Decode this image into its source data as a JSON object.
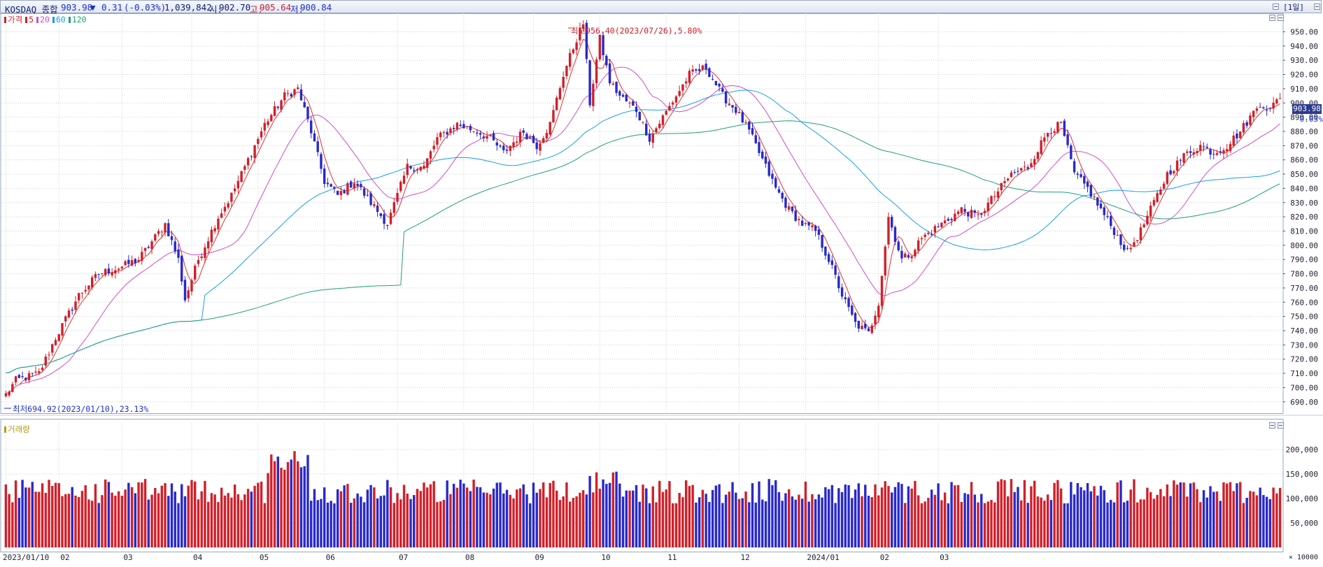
{
  "header": {
    "index_name": "KOSDAQ 종합",
    "last": "903.98",
    "change_arrow": "▼",
    "change": "0.31",
    "change_pct": "(-0.03%)",
    "volume": "1,039,842",
    "open_label": "시:",
    "open": "902.70",
    "high_label": "고:",
    "high": "905.64",
    "low_label": "저:",
    "low": "900.84",
    "period_button": "[1일]"
  },
  "price_panel": {
    "legend": [
      {
        "label": "가격",
        "color": "#d0202a"
      },
      {
        "label": "5",
        "color": "#d0202a"
      },
      {
        "label": "20",
        "color": "#d04ec8"
      },
      {
        "label": "60",
        "color": "#1a9fe0"
      },
      {
        "label": "120",
        "color": "#20a07a"
      }
    ],
    "high_annotation": "최고956.40(2023/07/26),5.80%",
    "low_annotation": "최저694.92(2023/01/10),23.13%",
    "last_price_tag": "903.98",
    "last_change_tag": "-0.03%"
  },
  "volume_panel": {
    "title": "거래량",
    "unit_label": "× 10000"
  },
  "colors": {
    "up": "#d0202a",
    "down": "#2929c8",
    "grid": "#c9cfe3",
    "ma5": "#e03030",
    "ma20": "#d04ec8",
    "ma60": "#1a9fe0",
    "ma120": "#20a07a"
  },
  "chart_data": {
    "type": "candlestick",
    "x_tick_labels": [
      "2023/01/10",
      "02",
      "03",
      "04",
      "05",
      "06",
      "07",
      "08",
      "09",
      "10",
      "11",
      "12",
      "2024/01",
      "02",
      "03"
    ],
    "y_ticks": [
      690,
      700,
      710,
      720,
      730,
      740,
      750,
      760,
      770,
      780,
      790,
      800,
      810,
      820,
      830,
      840,
      850,
      860,
      870,
      880,
      890,
      900,
      910,
      920,
      930,
      940,
      950
    ],
    "y_tick_labels": [
      "690.00",
      "700.00",
      "710.00",
      "720.00",
      "730.00",
      "740.00",
      "750.00",
      "760.00",
      "770.00",
      "780.00",
      "790.00",
      "800.00",
      "810.00",
      "820.00",
      "830.00",
      "840.00",
      "850.00",
      "860.00",
      "870.00",
      "880.00",
      "890.00",
      "900.00",
      "910.00",
      "920.00",
      "930.00",
      "940.00",
      "950.00"
    ],
    "ylim": [
      683,
      963
    ],
    "volume_ticks": [
      50000,
      100000,
      150000,
      200000
    ],
    "volume_tick_labels": [
      "50,000",
      "100,000",
      "150,000",
      "200,000"
    ],
    "volume_ylim": [
      0,
      240000
    ],
    "close_keypoints": [
      [
        0,
        695
      ],
      [
        3,
        705
      ],
      [
        10,
        710
      ],
      [
        15,
        735
      ],
      [
        22,
        765
      ],
      [
        28,
        780
      ],
      [
        35,
        785
      ],
      [
        40,
        790
      ],
      [
        48,
        815
      ],
      [
        52,
        790
      ],
      [
        54,
        762
      ],
      [
        58,
        790
      ],
      [
        64,
        820
      ],
      [
        68,
        835
      ],
      [
        73,
        860
      ],
      [
        78,
        885
      ],
      [
        84,
        905
      ],
      [
        88,
        910
      ],
      [
        92,
        880
      ],
      [
        96,
        845
      ],
      [
        100,
        835
      ],
      [
        105,
        845
      ],
      [
        110,
        830
      ],
      [
        115,
        815
      ],
      [
        118,
        835
      ],
      [
        121,
        855
      ],
      [
        126,
        855
      ],
      [
        130,
        875
      ],
      [
        136,
        885
      ],
      [
        142,
        880
      ],
      [
        146,
        875
      ],
      [
        150,
        865
      ],
      [
        156,
        880
      ],
      [
        160,
        870
      ],
      [
        164,
        885
      ],
      [
        168,
        920
      ],
      [
        172,
        945
      ],
      [
        174,
        956
      ],
      [
        176,
        900
      ],
      [
        179,
        945
      ],
      [
        182,
        915
      ],
      [
        185,
        905
      ],
      [
        190,
        895
      ],
      [
        194,
        875
      ],
      [
        198,
        890
      ],
      [
        202,
        905
      ],
      [
        206,
        920
      ],
      [
        211,
        925
      ],
      [
        216,
        905
      ],
      [
        220,
        895
      ],
      [
        224,
        880
      ],
      [
        228,
        860
      ],
      [
        232,
        840
      ],
      [
        236,
        825
      ],
      [
        240,
        815
      ],
      [
        244,
        810
      ],
      [
        248,
        790
      ],
      [
        252,
        765
      ],
      [
        256,
        745
      ],
      [
        260,
        738
      ],
      [
        263,
        760
      ],
      [
        266,
        820
      ],
      [
        270,
        790
      ],
      [
        273,
        795
      ],
      [
        276,
        805
      ],
      [
        282,
        815
      ],
      [
        288,
        825
      ],
      [
        293,
        820
      ],
      [
        298,
        835
      ],
      [
        303,
        850
      ],
      [
        308,
        855
      ],
      [
        314,
        880
      ],
      [
        318,
        885
      ],
      [
        322,
        850
      ],
      [
        326,
        840
      ],
      [
        330,
        825
      ],
      [
        334,
        810
      ],
      [
        338,
        795
      ],
      [
        342,
        810
      ],
      [
        346,
        830
      ],
      [
        350,
        850
      ],
      [
        356,
        865
      ],
      [
        360,
        870
      ],
      [
        364,
        865
      ],
      [
        368,
        870
      ],
      [
        372,
        880
      ],
      [
        375,
        890
      ],
      [
        378,
        900
      ],
      [
        381,
        895
      ],
      [
        384,
        905
      ]
    ],
    "bars": 385,
    "moving_averages": [
      5,
      20,
      60,
      120
    ],
    "annotations": [
      {
        "text": "최고956.40(2023/07/26),5.80%",
        "value": 956.4
      },
      {
        "text": "최저694.92(2023/01/10),23.13%",
        "value": 694.92
      }
    ]
  }
}
